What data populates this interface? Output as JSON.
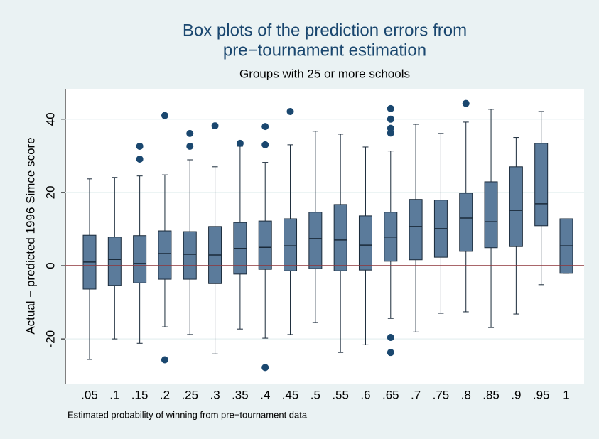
{
  "chart_data": {
    "type": "box",
    "title": [
      "Box plots of the prediction errors from",
      "pre−tournament estimation"
    ],
    "subtitle": "Groups with 25 or more schools",
    "y_label": "Actual − predicted 1996 Simce score",
    "x_label": "Estimated probability of winning from pre−tournament data",
    "categories": [
      ".05",
      ".1",
      ".15",
      ".2",
      ".25",
      ".3",
      ".35",
      ".4",
      ".45",
      ".5",
      ".55",
      ".6",
      ".65",
      ".7",
      ".75",
      ".8",
      ".85",
      ".9",
      ".95",
      "1"
    ],
    "boxes": [
      {
        "low": -25.6,
        "q1": -6.4,
        "median": 1.0,
        "q3": 8.3,
        "high": 23.7,
        "outliers": []
      },
      {
        "low": -20.0,
        "q1": -5.4,
        "median": 1.7,
        "q3": 7.8,
        "high": 24.1,
        "outliers": []
      },
      {
        "low": -21.2,
        "q1": -4.7,
        "median": 0.6,
        "q3": 8.2,
        "high": 24.5,
        "outliers": [
          32.6,
          29.1
        ]
      },
      {
        "low": -16.7,
        "q1": -3.7,
        "median": 3.3,
        "q3": 9.5,
        "high": 24.8,
        "outliers": [
          41.0,
          -25.7
        ]
      },
      {
        "low": -18.8,
        "q1": -3.7,
        "median": 3.1,
        "q3": 9.3,
        "high": 28.9,
        "outliers": [
          36.1,
          32.6
        ]
      },
      {
        "low": -24.1,
        "q1": -4.9,
        "median": 2.9,
        "q3": 10.7,
        "high": 27.0,
        "outliers": [
          38.2
        ]
      },
      {
        "low": -17.3,
        "q1": -2.3,
        "median": 4.7,
        "q3": 11.8,
        "high": 32.6,
        "outliers": [
          33.4
        ]
      },
      {
        "low": -19.8,
        "q1": -1.0,
        "median": 5.0,
        "q3": 12.2,
        "high": 28.2,
        "outliers": [
          38.0,
          33.0,
          -27.8
        ]
      },
      {
        "low": -18.8,
        "q1": -1.4,
        "median": 5.4,
        "q3": 12.8,
        "high": 33.0,
        "outliers": [
          42.1
        ]
      },
      {
        "low": -15.5,
        "q1": -0.8,
        "median": 7.4,
        "q3": 14.6,
        "high": 36.7,
        "outliers": []
      },
      {
        "low": -23.7,
        "q1": -1.4,
        "median": 7.0,
        "q3": 16.7,
        "high": 35.9,
        "outliers": []
      },
      {
        "low": -21.6,
        "q1": -1.2,
        "median": 5.6,
        "q3": 13.6,
        "high": 32.4,
        "outliers": []
      },
      {
        "low": -14.4,
        "q1": 1.2,
        "median": 7.8,
        "q3": 14.6,
        "high": 31.3,
        "outliers": [
          42.9,
          40.0,
          37.5,
          36.2,
          -19.6,
          -23.7
        ]
      },
      {
        "low": -18.1,
        "q1": 1.6,
        "median": 10.7,
        "q3": 18.1,
        "high": 38.6,
        "outliers": []
      },
      {
        "low": -13.0,
        "q1": 2.3,
        "median": 10.1,
        "q3": 17.9,
        "high": 36.1,
        "outliers": []
      },
      {
        "low": -12.6,
        "q1": 3.9,
        "median": 13.0,
        "q3": 19.8,
        "high": 39.2,
        "outliers": [
          44.3
        ]
      },
      {
        "low": -16.9,
        "q1": 4.9,
        "median": 12.0,
        "q3": 22.9,
        "high": 42.7,
        "outliers": []
      },
      {
        "low": -13.2,
        "q1": 5.2,
        "median": 15.1,
        "q3": 27.0,
        "high": 35.0,
        "outliers": []
      },
      {
        "low": -5.2,
        "q1": 10.9,
        "median": 16.9,
        "q3": 33.4,
        "high": 42.1,
        "outliers": []
      },
      {
        "low": -2.1,
        "q1": -2.1,
        "median": 5.4,
        "q3": 12.8,
        "high": 12.8,
        "outliers": []
      }
    ],
    "color": "#5b7b9b",
    "outlier_color": "#1a476f",
    "hline": 0,
    "hline_color": "#90353b",
    "ylim": [
      -32.2,
      48.3
    ],
    "yticks": [
      -20,
      0,
      20,
      40
    ],
    "grid": true
  }
}
